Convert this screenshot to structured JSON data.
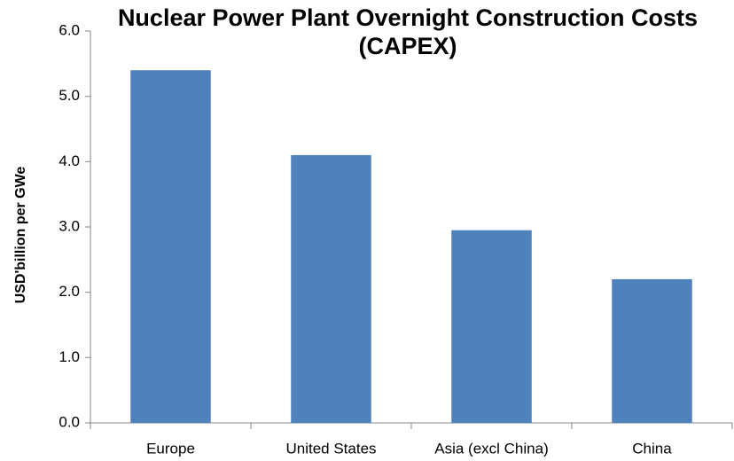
{
  "chart_data": {
    "type": "bar",
    "title": "Nuclear Power Plant Overnight Construction Costs (CAPEX)",
    "y_label": "USD'billion per GWe",
    "categories": [
      "Europe",
      "United States",
      "Asia (excl China)",
      "China"
    ],
    "values": [
      5.4,
      4.1,
      2.95,
      2.2
    ],
    "color": "#4f81bd",
    "ylim": [
      0,
      6
    ],
    "yticks": [
      {
        "value": 0,
        "label": "0.0"
      },
      {
        "value": 1,
        "label": "1.0"
      },
      {
        "value": 2,
        "label": "2.0"
      },
      {
        "value": 3,
        "label": "3.0"
      },
      {
        "value": 4,
        "label": "4.0"
      },
      {
        "value": 5,
        "label": "5.0"
      },
      {
        "value": 6,
        "label": "6.0"
      }
    ],
    "grid": false
  }
}
